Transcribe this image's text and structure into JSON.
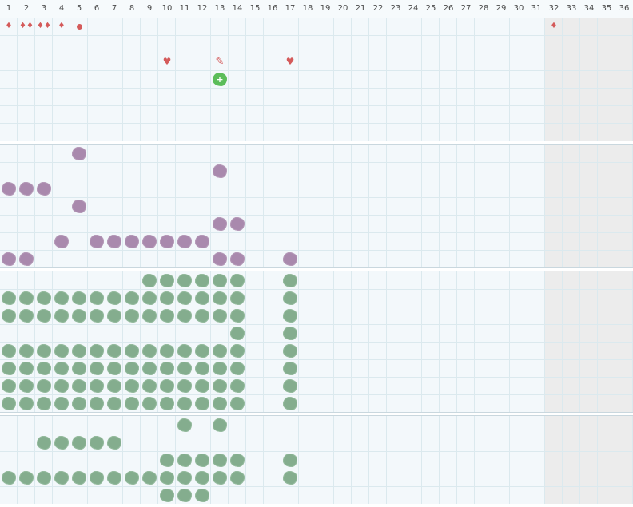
{
  "header": {
    "columns": [
      "1",
      "2",
      "3",
      "4",
      "5",
      "6",
      "7",
      "8",
      "9",
      "10",
      "11",
      "12",
      "13",
      "14",
      "15",
      "16",
      "17",
      "18",
      "19",
      "20",
      "21",
      "22",
      "23",
      "24",
      "25",
      "26",
      "27",
      "28",
      "29",
      "30",
      "31",
      "32",
      "33",
      "34",
      "35",
      "36"
    ]
  },
  "colors": {
    "grid_background": "#f3f8fb",
    "grid_line": "#dbe9ee",
    "shaded_columns": "#ececec",
    "purple_tile": "#a989ad",
    "green_tile": "#84ad8e",
    "bright_green_tile": "#5bbd5a",
    "marker_red": "#d45a5a"
  },
  "sections": [
    {
      "name": "markers",
      "rows": 7,
      "items": [
        {
          "row": 0,
          "col": 1,
          "kind": "drop",
          "icon": "drop-icon",
          "text": "♦"
        },
        {
          "row": 0,
          "col": 2,
          "kind": "drop",
          "icon": "drop-icon",
          "text": "♦♦"
        },
        {
          "row": 0,
          "col": 3,
          "kind": "drop",
          "icon": "drop-icon",
          "text": "♦♦"
        },
        {
          "row": 0,
          "col": 4,
          "kind": "drop",
          "icon": "drop-icon",
          "text": "♦"
        },
        {
          "row": 0,
          "col": 5,
          "kind": "dot",
          "icon": "dot-icon",
          "text": ""
        },
        {
          "row": 0,
          "col": 32,
          "kind": "drop",
          "icon": "drop-icon",
          "text": "♦"
        },
        {
          "row": 2,
          "col": 10,
          "kind": "heart",
          "icon": "heart-icon",
          "text": "♥"
        },
        {
          "row": 2,
          "col": 13,
          "kind": "pencil",
          "icon": "pencil-icon",
          "text": "✎"
        },
        {
          "row": 2,
          "col": 17,
          "kind": "heart",
          "icon": "heart-icon",
          "text": "♥"
        },
        {
          "row": 3,
          "col": 13,
          "kind": "bright",
          "icon": "plus-tile-icon",
          "text": "+"
        }
      ]
    },
    {
      "name": "purple-block",
      "rows": 7,
      "items": [
        {
          "row": 0,
          "col": 5,
          "kind": "purple"
        },
        {
          "row": 1,
          "col": 13,
          "kind": "purple"
        },
        {
          "row": 2,
          "col": 1,
          "kind": "purple"
        },
        {
          "row": 2,
          "col": 2,
          "kind": "purple"
        },
        {
          "row": 2,
          "col": 3,
          "kind": "purple"
        },
        {
          "row": 3,
          "col": 5,
          "kind": "purple"
        },
        {
          "row": 4,
          "col": 13,
          "kind": "purple"
        },
        {
          "row": 4,
          "col": 14,
          "kind": "purple"
        },
        {
          "row": 5,
          "col": 4,
          "kind": "purple"
        },
        {
          "row": 5,
          "col": 6,
          "kind": "purple"
        },
        {
          "row": 5,
          "col": 7,
          "kind": "purple"
        },
        {
          "row": 5,
          "col": 8,
          "kind": "purple"
        },
        {
          "row": 5,
          "col": 9,
          "kind": "purple"
        },
        {
          "row": 5,
          "col": 10,
          "kind": "purple"
        },
        {
          "row": 5,
          "col": 11,
          "kind": "purple"
        },
        {
          "row": 5,
          "col": 12,
          "kind": "purple"
        },
        {
          "row": 6,
          "col": 1,
          "kind": "purple"
        },
        {
          "row": 6,
          "col": 2,
          "kind": "purple"
        },
        {
          "row": 6,
          "col": 13,
          "kind": "purple"
        },
        {
          "row": 6,
          "col": 14,
          "kind": "purple"
        },
        {
          "row": 6,
          "col": 17,
          "kind": "purple"
        }
      ]
    },
    {
      "name": "green-block-1",
      "rows": 8,
      "items": [
        {
          "row": 0,
          "col": 9,
          "kind": "green"
        },
        {
          "row": 0,
          "col": 10,
          "kind": "green"
        },
        {
          "row": 0,
          "col": 11,
          "kind": "green"
        },
        {
          "row": 0,
          "col": 12,
          "kind": "green"
        },
        {
          "row": 0,
          "col": 13,
          "kind": "green"
        },
        {
          "row": 0,
          "col": 14,
          "kind": "green"
        },
        {
          "row": 0,
          "col": 17,
          "kind": "green"
        },
        {
          "row": 1,
          "col": 1,
          "kind": "green"
        },
        {
          "row": 1,
          "col": 2,
          "kind": "green"
        },
        {
          "row": 1,
          "col": 3,
          "kind": "green"
        },
        {
          "row": 1,
          "col": 4,
          "kind": "green"
        },
        {
          "row": 1,
          "col": 5,
          "kind": "green"
        },
        {
          "row": 1,
          "col": 6,
          "kind": "green"
        },
        {
          "row": 1,
          "col": 7,
          "kind": "green"
        },
        {
          "row": 1,
          "col": 8,
          "kind": "green"
        },
        {
          "row": 1,
          "col": 9,
          "kind": "green"
        },
        {
          "row": 1,
          "col": 10,
          "kind": "green"
        },
        {
          "row": 1,
          "col": 11,
          "kind": "green"
        },
        {
          "row": 1,
          "col": 12,
          "kind": "green"
        },
        {
          "row": 1,
          "col": 13,
          "kind": "green"
        },
        {
          "row": 1,
          "col": 14,
          "kind": "green"
        },
        {
          "row": 1,
          "col": 17,
          "kind": "green"
        },
        {
          "row": 2,
          "col": 1,
          "kind": "green"
        },
        {
          "row": 2,
          "col": 2,
          "kind": "green"
        },
        {
          "row": 2,
          "col": 3,
          "kind": "green"
        },
        {
          "row": 2,
          "col": 4,
          "kind": "green"
        },
        {
          "row": 2,
          "col": 5,
          "kind": "green"
        },
        {
          "row": 2,
          "col": 6,
          "kind": "green"
        },
        {
          "row": 2,
          "col": 7,
          "kind": "green"
        },
        {
          "row": 2,
          "col": 8,
          "kind": "green"
        },
        {
          "row": 2,
          "col": 9,
          "kind": "green"
        },
        {
          "row": 2,
          "col": 10,
          "kind": "green"
        },
        {
          "row": 2,
          "col": 11,
          "kind": "green"
        },
        {
          "row": 2,
          "col": 12,
          "kind": "green"
        },
        {
          "row": 2,
          "col": 13,
          "kind": "green"
        },
        {
          "row": 2,
          "col": 14,
          "kind": "green"
        },
        {
          "row": 2,
          "col": 17,
          "kind": "green"
        },
        {
          "row": 3,
          "col": 14,
          "kind": "green"
        },
        {
          "row": 3,
          "col": 17,
          "kind": "green"
        },
        {
          "row": 4,
          "col": 1,
          "kind": "green"
        },
        {
          "row": 4,
          "col": 2,
          "kind": "green"
        },
        {
          "row": 4,
          "col": 3,
          "kind": "green"
        },
        {
          "row": 4,
          "col": 4,
          "kind": "green"
        },
        {
          "row": 4,
          "col": 5,
          "kind": "green"
        },
        {
          "row": 4,
          "col": 6,
          "kind": "green"
        },
        {
          "row": 4,
          "col": 7,
          "kind": "green"
        },
        {
          "row": 4,
          "col": 8,
          "kind": "green"
        },
        {
          "row": 4,
          "col": 9,
          "kind": "green"
        },
        {
          "row": 4,
          "col": 10,
          "kind": "green"
        },
        {
          "row": 4,
          "col": 11,
          "kind": "green"
        },
        {
          "row": 4,
          "col": 12,
          "kind": "green"
        },
        {
          "row": 4,
          "col": 13,
          "kind": "green"
        },
        {
          "row": 4,
          "col": 14,
          "kind": "green"
        },
        {
          "row": 4,
          "col": 17,
          "kind": "green"
        },
        {
          "row": 5,
          "col": 1,
          "kind": "green"
        },
        {
          "row": 5,
          "col": 2,
          "kind": "green"
        },
        {
          "row": 5,
          "col": 3,
          "kind": "green"
        },
        {
          "row": 5,
          "col": 4,
          "kind": "green"
        },
        {
          "row": 5,
          "col": 5,
          "kind": "green"
        },
        {
          "row": 5,
          "col": 6,
          "kind": "green"
        },
        {
          "row": 5,
          "col": 7,
          "kind": "green"
        },
        {
          "row": 5,
          "col": 8,
          "kind": "green"
        },
        {
          "row": 5,
          "col": 9,
          "kind": "green"
        },
        {
          "row": 5,
          "col": 10,
          "kind": "green"
        },
        {
          "row": 5,
          "col": 11,
          "kind": "green"
        },
        {
          "row": 5,
          "col": 12,
          "kind": "green"
        },
        {
          "row": 5,
          "col": 13,
          "kind": "green"
        },
        {
          "row": 5,
          "col": 14,
          "kind": "green"
        },
        {
          "row": 5,
          "col": 17,
          "kind": "green"
        },
        {
          "row": 6,
          "col": 1,
          "kind": "green"
        },
        {
          "row": 6,
          "col": 2,
          "kind": "green"
        },
        {
          "row": 6,
          "col": 3,
          "kind": "green"
        },
        {
          "row": 6,
          "col": 4,
          "kind": "green"
        },
        {
          "row": 6,
          "col": 5,
          "kind": "green"
        },
        {
          "row": 6,
          "col": 6,
          "kind": "green"
        },
        {
          "row": 6,
          "col": 7,
          "kind": "green"
        },
        {
          "row": 6,
          "col": 8,
          "kind": "green"
        },
        {
          "row": 6,
          "col": 9,
          "kind": "green"
        },
        {
          "row": 6,
          "col": 10,
          "kind": "green"
        },
        {
          "row": 6,
          "col": 11,
          "kind": "green"
        },
        {
          "row": 6,
          "col": 12,
          "kind": "green"
        },
        {
          "row": 6,
          "col": 13,
          "kind": "green"
        },
        {
          "row": 6,
          "col": 14,
          "kind": "green"
        },
        {
          "row": 6,
          "col": 17,
          "kind": "green"
        },
        {
          "row": 7,
          "col": 1,
          "kind": "green"
        },
        {
          "row": 7,
          "col": 2,
          "kind": "green"
        },
        {
          "row": 7,
          "col": 3,
          "kind": "green"
        },
        {
          "row": 7,
          "col": 4,
          "kind": "green"
        },
        {
          "row": 7,
          "col": 5,
          "kind": "green"
        },
        {
          "row": 7,
          "col": 6,
          "kind": "green"
        },
        {
          "row": 7,
          "col": 7,
          "kind": "green"
        },
        {
          "row": 7,
          "col": 8,
          "kind": "green"
        },
        {
          "row": 7,
          "col": 9,
          "kind": "green"
        },
        {
          "row": 7,
          "col": 10,
          "kind": "green"
        },
        {
          "row": 7,
          "col": 11,
          "kind": "green"
        },
        {
          "row": 7,
          "col": 12,
          "kind": "green"
        },
        {
          "row": 7,
          "col": 13,
          "kind": "green"
        },
        {
          "row": 7,
          "col": 14,
          "kind": "green"
        },
        {
          "row": 7,
          "col": 17,
          "kind": "green"
        }
      ]
    },
    {
      "name": "green-block-2",
      "rows": 5,
      "items": [
        {
          "row": 0,
          "col": 11,
          "kind": "green"
        },
        {
          "row": 0,
          "col": 13,
          "kind": "green"
        },
        {
          "row": 1,
          "col": 3,
          "kind": "green"
        },
        {
          "row": 1,
          "col": 4,
          "kind": "green"
        },
        {
          "row": 1,
          "col": 5,
          "kind": "green"
        },
        {
          "row": 1,
          "col": 6,
          "kind": "green"
        },
        {
          "row": 1,
          "col": 7,
          "kind": "green"
        },
        {
          "row": 2,
          "col": 10,
          "kind": "green"
        },
        {
          "row": 2,
          "col": 11,
          "kind": "green"
        },
        {
          "row": 2,
          "col": 12,
          "kind": "green"
        },
        {
          "row": 2,
          "col": 13,
          "kind": "green"
        },
        {
          "row": 2,
          "col": 14,
          "kind": "green"
        },
        {
          "row": 2,
          "col": 17,
          "kind": "green"
        },
        {
          "row": 3,
          "col": 1,
          "kind": "green"
        },
        {
          "row": 3,
          "col": 2,
          "kind": "green"
        },
        {
          "row": 3,
          "col": 3,
          "kind": "green"
        },
        {
          "row": 3,
          "col": 4,
          "kind": "green"
        },
        {
          "row": 3,
          "col": 5,
          "kind": "green"
        },
        {
          "row": 3,
          "col": 6,
          "kind": "green"
        },
        {
          "row": 3,
          "col": 7,
          "kind": "green"
        },
        {
          "row": 3,
          "col": 8,
          "kind": "green"
        },
        {
          "row": 3,
          "col": 9,
          "kind": "green"
        },
        {
          "row": 3,
          "col": 10,
          "kind": "green"
        },
        {
          "row": 3,
          "col": 11,
          "kind": "green"
        },
        {
          "row": 3,
          "col": 12,
          "kind": "green"
        },
        {
          "row": 3,
          "col": 13,
          "kind": "green"
        },
        {
          "row": 3,
          "col": 14,
          "kind": "green"
        },
        {
          "row": 3,
          "col": 17,
          "kind": "green"
        },
        {
          "row": 4,
          "col": 10,
          "kind": "green"
        },
        {
          "row": 4,
          "col": 11,
          "kind": "green"
        },
        {
          "row": 4,
          "col": 12,
          "kind": "green"
        }
      ]
    }
  ]
}
